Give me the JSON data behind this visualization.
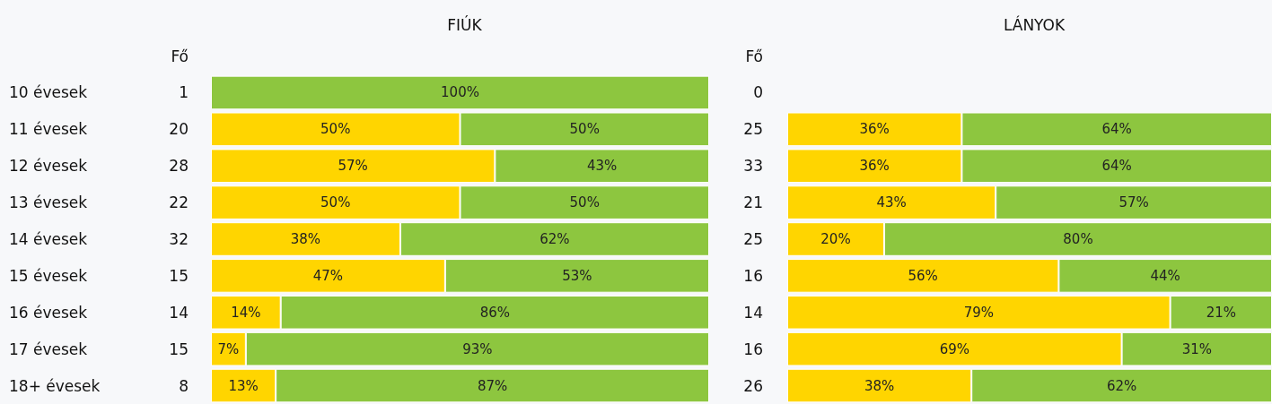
{
  "chart_data": [
    {
      "type": "bar",
      "title": "FIÚK",
      "ylabel": "Fő",
      "orientation": "horizontal",
      "stacked": true,
      "tick_labels": "y",
      "categories": [
        "10 évesek",
        "11 évesek",
        "12 évesek",
        "13 évesek",
        "14 évesek",
        "15 évesek",
        "16 évesek",
        "17 évesek",
        "18+ évesek"
      ],
      "series": [
        {
          "color": "#ffd500",
          "values": [
            null,
            50,
            57,
            50,
            38,
            47,
            14,
            7,
            13
          ],
          "value_labels": [
            null,
            "50%",
            "57%",
            "50%",
            "38%",
            "47%",
            "14%",
            "7%",
            "13%"
          ]
        },
        {
          "color": "#8dc63f",
          "values": [
            100,
            50,
            43,
            50,
            62,
            53,
            86,
            93,
            87
          ],
          "value_labels": [
            "100%",
            "50%",
            "43%",
            "50%",
            "62%",
            "53%",
            "86%",
            "93%",
            "87%"
          ]
        }
      ],
      "annotations": [
        "1",
        "20",
        "28",
        "22",
        "32",
        "15",
        "14",
        "15",
        "8"
      ]
    },
    {
      "type": "bar",
      "title": "LÁNYOK",
      "ylabel": "Fő",
      "orientation": "horizontal",
      "stacked": true,
      "tick_labels": false,
      "categories": [
        null,
        null,
        null,
        null,
        null,
        null,
        null,
        null,
        null
      ],
      "series": [
        {
          "color": "#ffd500",
          "values": [
            null,
            36,
            36,
            43,
            20,
            56,
            79,
            69,
            38
          ],
          "value_labels": [
            null,
            "36%",
            "36%",
            "43%",
            "20%",
            "56%",
            "79%",
            "69%",
            "38%"
          ]
        },
        {
          "color": "#8dc63f",
          "values": [
            null,
            64,
            64,
            57,
            80,
            44,
            21,
            31,
            62
          ],
          "value_labels": [
            null,
            "64%",
            "64%",
            "57%",
            "80%",
            "44%",
            "21%",
            "31%",
            "62%"
          ]
        }
      ],
      "annotations": [
        "0",
        "25",
        "33",
        "21",
        "25",
        "16",
        "14",
        "16",
        "26"
      ]
    }
  ]
}
